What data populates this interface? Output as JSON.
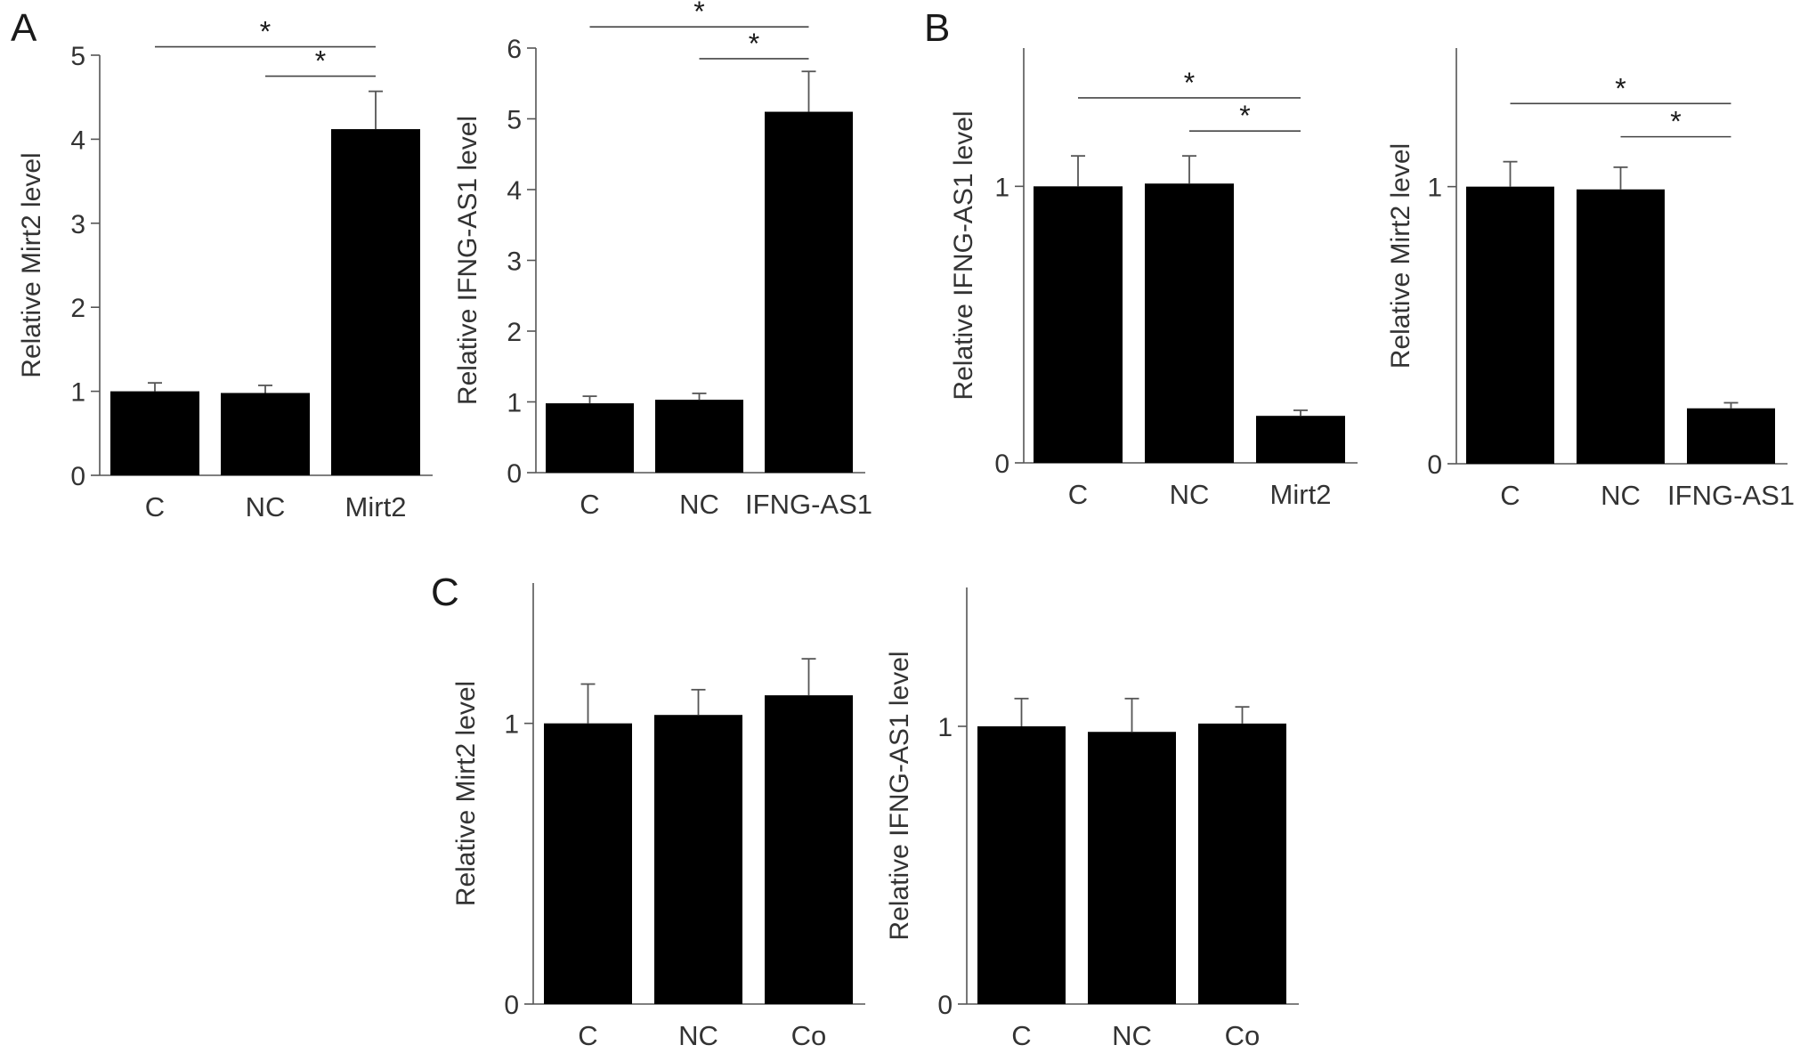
{
  "panel_letters": [
    "A",
    "B",
    "C"
  ],
  "chart_data": [
    {
      "type": "bar",
      "panel": "A",
      "ylabel": "Relative Mirt2 level",
      "categories": [
        "C",
        "NC",
        "Mirt2"
      ],
      "values": [
        1.0,
        0.98,
        4.12
      ],
      "errors": [
        0.1,
        0.09,
        0.45
      ],
      "ylim": [
        0,
        5
      ],
      "yticks": [
        0,
        1,
        2,
        3,
        4,
        5
      ],
      "significance": [
        {
          "from": 0,
          "to": 2,
          "label": "*",
          "y": 5.1
        },
        {
          "from": 1,
          "to": 2,
          "label": "*",
          "y": 4.75
        }
      ]
    },
    {
      "type": "bar",
      "panel": "A",
      "ylabel": "Relative IFNG-AS1 level",
      "categories": [
        "C",
        "NC",
        "IFNG-AS1"
      ],
      "values": [
        0.98,
        1.03,
        5.1
      ],
      "errors": [
        0.1,
        0.09,
        0.57
      ],
      "ylim": [
        0,
        6
      ],
      "yticks": [
        0,
        1,
        2,
        3,
        4,
        5,
        6
      ],
      "significance": [
        {
          "from": 0,
          "to": 2,
          "label": "*",
          "y": 6.3
        },
        {
          "from": 1,
          "to": 2,
          "label": "*",
          "y": 5.85
        }
      ]
    },
    {
      "type": "bar",
      "panel": "B",
      "ylabel": "Relative IFNG-AS1 level",
      "categories": [
        "C",
        "NC",
        "Mirt2"
      ],
      "values": [
        1.0,
        1.01,
        0.17
      ],
      "errors": [
        0.11,
        0.1,
        0.02
      ],
      "ylim": [
        0,
        1.5
      ],
      "yticks": [
        0,
        1
      ],
      "significance": [
        {
          "from": 0,
          "to": 2,
          "label": "*",
          "y": 1.32
        },
        {
          "from": 1,
          "to": 2,
          "label": "*",
          "y": 1.2
        }
      ]
    },
    {
      "type": "bar",
      "panel": "B",
      "ylabel": "Relative Mirt2 level",
      "categories": [
        "C",
        "NC",
        "IFNG-AS1"
      ],
      "values": [
        1.0,
        0.99,
        0.2
      ],
      "errors": [
        0.09,
        0.08,
        0.02
      ],
      "ylim": [
        0,
        1.5
      ],
      "yticks": [
        0,
        1
      ],
      "significance": [
        {
          "from": 0,
          "to": 2,
          "label": "*",
          "y": 1.3
        },
        {
          "from": 1,
          "to": 2,
          "label": "*",
          "y": 1.18
        }
      ]
    },
    {
      "type": "bar",
      "panel": "C",
      "ylabel": "Relative Mirt2 level",
      "categories": [
        "C",
        "NC",
        "Co"
      ],
      "values": [
        1.0,
        1.03,
        1.1
      ],
      "errors": [
        0.14,
        0.09,
        0.13
      ],
      "ylim": [
        0,
        1.5
      ],
      "yticks": [
        0,
        1
      ],
      "significance": []
    },
    {
      "type": "bar",
      "panel": "C",
      "ylabel": "Relative IFNG-AS1 level",
      "categories": [
        "C",
        "NC",
        "Co"
      ],
      "values": [
        1.0,
        0.98,
        1.01
      ],
      "errors": [
        0.1,
        0.12,
        0.06
      ],
      "ylim": [
        0,
        1.5
      ],
      "yticks": [
        0,
        1
      ],
      "significance": []
    }
  ]
}
